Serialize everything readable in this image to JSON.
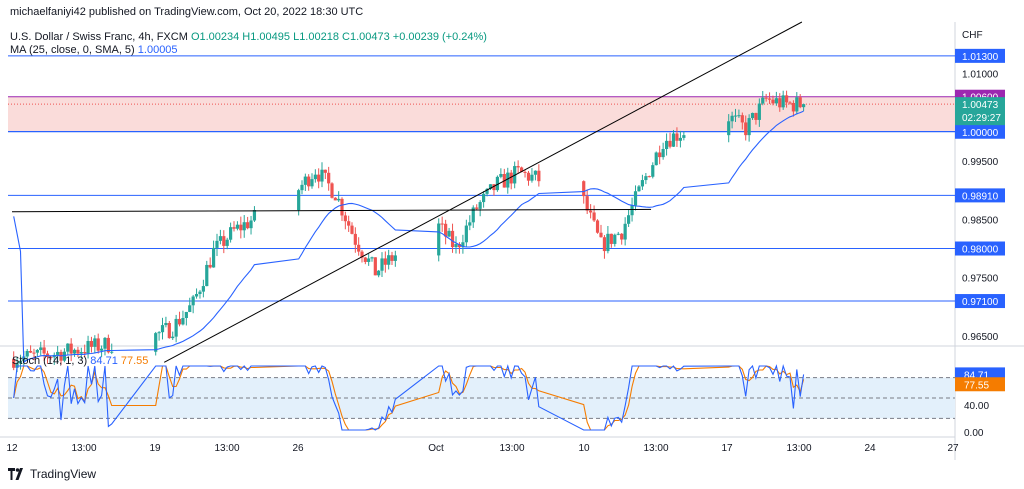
{
  "header": {
    "publisher": "michaelfaniyi42 published on TradingView.com, Oct 20, 2022 18:30 UTC",
    "symbol": "U.S. Dollar / Swiss Franc, 4h, FXCM",
    "ohlc": "O1.00234 H1.00495 L1.00218 C1.00473 +0.00239 (+0.24%)",
    "ma_label": "MA (25, close, 0, SMA, 5)",
    "ma_value": "1.00005"
  },
  "stoch": {
    "label": "Stoch (14, 1, 3)",
    "k_value": "84.71",
    "d_value": "77.55",
    "axis_ticks": [
      "40.00",
      "0.00"
    ],
    "k_badge": "84.71",
    "d_badge": "77.55"
  },
  "price_axis": {
    "currency": "CHF",
    "ticks": [
      "1.01000",
      "0.99500",
      "0.98500",
      "0.97500",
      "0.96500"
    ],
    "level_badges": [
      "1.01300",
      "1.00600",
      "1.00005",
      "1.00000",
      "0.98910",
      "0.98000",
      "0.97100"
    ],
    "current_price": "1.00473",
    "countdown": "02:29:27"
  },
  "time_axis": {
    "labels": [
      "12",
      "13:00",
      "19",
      "13:00",
      "26",
      "Oct",
      "13:00",
      "10",
      "13:00",
      "17",
      "13:00",
      "24",
      "27"
    ]
  },
  "footer": {
    "brand": "TradingView"
  },
  "colors": {
    "up": "#26a69a",
    "down": "#ef5350",
    "ma": "#2962ff",
    "level_line": "#2962ff",
    "zone_fill": "#f9d6d4",
    "stoch_k": "#2962ff",
    "stoch_d": "#f57c00",
    "stoch_band": "#e3f0fb",
    "trendline": "#000000"
  },
  "chart_data": [
    {
      "type": "candlestick",
      "title": "U.S. Dollar / Swiss Franc, 4h, FXCM",
      "ylabel": "CHF",
      "ylim": [
        0.9633,
        1.0188
      ],
      "levels": [
        1.013,
        1.006,
        1.00005,
        1.0,
        0.9891,
        0.98,
        0.971
      ],
      "resistance_zone": [
        1.0,
        1.006
      ],
      "trendlines": [
        {
          "from": [
            "Sep 19 12:00",
            0.9605
          ],
          "to": [
            "Oct 20 16:00",
            1.0188
          ]
        },
        {
          "from": [
            "Sep 12 00:00",
            0.9863
          ],
          "to": [
            "Oct 13 08:00",
            0.9867
          ]
        }
      ],
      "close_path": [
        [
          "Sep 12",
          0.9611
        ],
        [
          "Sep 14",
          0.9619
        ],
        [
          "Sep 16",
          0.9631
        ],
        [
          "Sep 19",
          0.9648
        ],
        [
          "Sep 20",
          0.9665
        ],
        [
          "Sep 21",
          0.9705
        ],
        [
          "Sep 22",
          0.9795
        ],
        [
          "Sep 23",
          0.983
        ],
        [
          "Sep 26",
          0.9895
        ],
        [
          "Sep 27",
          0.9935
        ],
        [
          "Sep 28",
          0.9895
        ],
        [
          "Sep 29",
          0.9815
        ],
        [
          "Sep 30",
          0.976
        ],
        [
          "Oct 3",
          0.9845
        ],
        [
          "Oct 4",
          0.98
        ],
        [
          "Oct 5",
          0.987
        ],
        [
          "Oct 6",
          0.991
        ],
        [
          "Oct 7",
          0.993
        ],
        [
          "Oct 10",
          0.9895
        ],
        [
          "Oct 11",
          0.9805
        ],
        [
          "Oct 12",
          0.983
        ],
        [
          "Oct 13",
          0.991
        ],
        [
          "Oct 14",
          0.9985
        ],
        [
          "Oct 17",
          1.003
        ],
        [
          "Oct 18",
          1.0005
        ],
        [
          "Oct 19",
          1.0055
        ],
        [
          "Oct 20",
          1.0047
        ]
      ],
      "ma": {
        "name": "MA (25, close, 0, SMA, 5)",
        "last": 1.00005
      },
      "last": {
        "open": 1.00234,
        "high": 1.00495,
        "low": 1.00218,
        "close": 1.00473,
        "change": 0.00239,
        "change_pct": 0.24
      }
    },
    {
      "type": "line",
      "title": "Stoch (14, 1, 3)",
      "ylim": [
        0,
        100
      ],
      "bands": [
        20,
        80
      ],
      "series": [
        {
          "name": "%K",
          "last": 84.71
        },
        {
          "name": "%D",
          "last": 77.55
        }
      ]
    }
  ]
}
